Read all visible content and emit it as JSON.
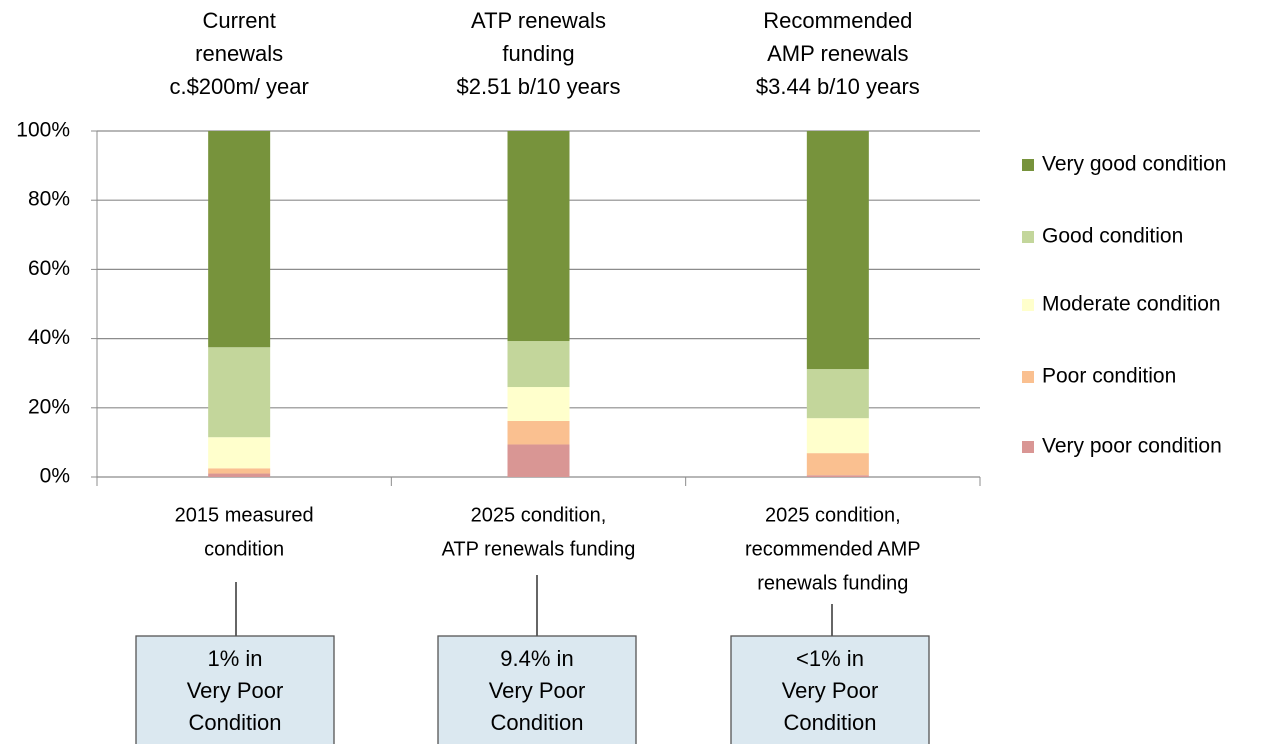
{
  "chart_data": {
    "type": "stacked_bar",
    "headers": [
      [
        "Current",
        "renewals",
        "c.$200m/ year"
      ],
      [
        "ATP renewals",
        "funding",
        "$2.51 b/10 years"
      ],
      [
        "Recommended",
        "AMP renewals",
        "$3.44 b/10 years"
      ]
    ],
    "categories": [
      [
        "2015 measured",
        "condition"
      ],
      [
        "2025 condition,",
        "ATP renewals funding"
      ],
      [
        "2025 condition,",
        "recommended AMP",
        "renewals funding"
      ]
    ],
    "series": [
      {
        "name": "Very poor condition",
        "color": "#d99694",
        "values": [
          1,
          9.4,
          0.5
        ]
      },
      {
        "name": "Poor condition",
        "color": "#fac090",
        "values": [
          1.5,
          6.8,
          6.4
        ]
      },
      {
        "name": "Moderate condition",
        "color": "#ffffcc",
        "values": [
          9,
          9.8,
          10.1
        ]
      },
      {
        "name": "Good condition",
        "color": "#c3d69b",
        "values": [
          26,
          13.3,
          14.2
        ]
      },
      {
        "name": "Very good condition",
        "color": "#77933c",
        "values": [
          62.5,
          60.7,
          68.8
        ]
      }
    ],
    "annotations": [
      [
        "1% in",
        "Very Poor",
        "Condition"
      ],
      [
        "9.4% in",
        "Very Poor",
        "Condition"
      ],
      [
        "<1% in",
        "Very Poor",
        "Condition"
      ]
    ],
    "ylim": [
      0,
      100
    ],
    "yticks": [
      {
        "value": 0,
        "label": "0%"
      },
      {
        "value": 20,
        "label": "20%"
      },
      {
        "value": 40,
        "label": "40%"
      },
      {
        "value": 60,
        "label": "60%"
      },
      {
        "value": 80,
        "label": "80%"
      },
      {
        "value": 100,
        "label": "100%"
      }
    ],
    "grid": true,
    "legend": "right"
  }
}
